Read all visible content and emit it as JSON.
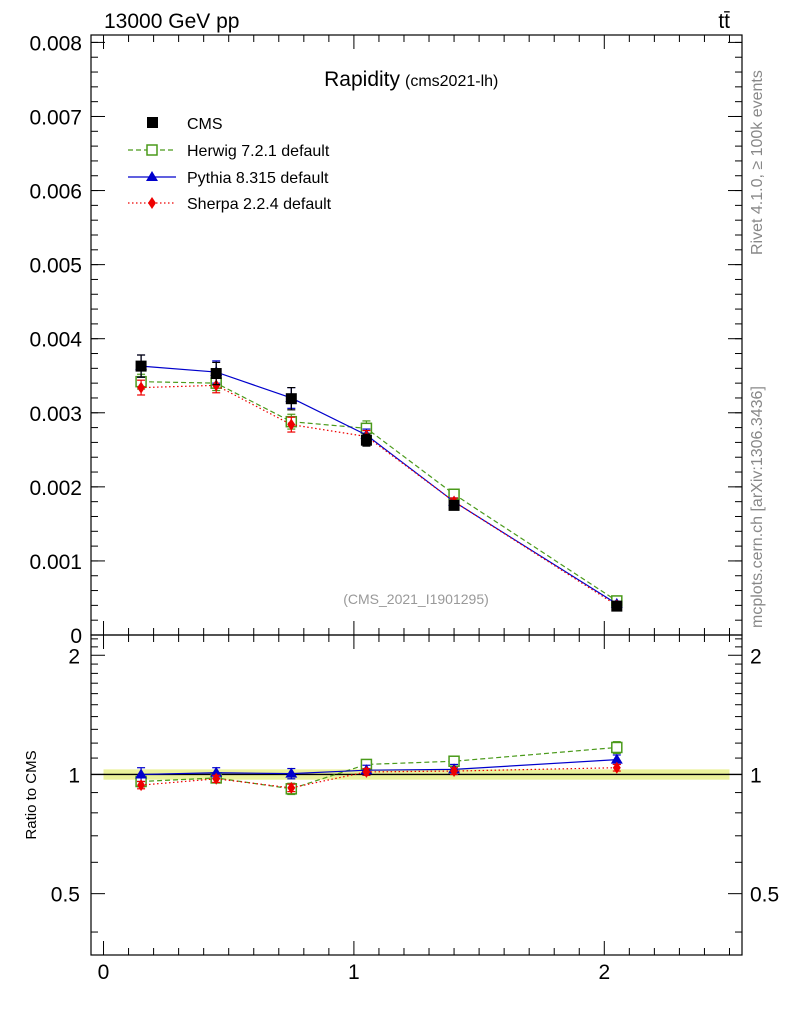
{
  "header": {
    "energy_label": "13000 GeV pp",
    "process_label": "tt̄",
    "side_label_top": "Rivet 4.1.0, ≥ 100k events",
    "side_label_bottom": "mcplots.cern.ch [arXiv:1306.3436]"
  },
  "chart_data": [
    {
      "type": "line",
      "title": "Rapidity",
      "subtitle": "(cms2021-lh)",
      "watermark": "(CMS_2021_I1901295)",
      "xlabel": "",
      "ylabel": "",
      "xlim": [
        -0.05,
        2.55
      ],
      "ylim": [
        0,
        0.0081
      ],
      "yticks": [
        0,
        0.001,
        0.002,
        0.003,
        0.004,
        0.005,
        0.006,
        0.007,
        0.008
      ],
      "ytick_labels": [
        "0",
        "0.001",
        "0.002",
        "0.003",
        "0.004",
        "0.005",
        "0.006",
        "0.007",
        "0.008"
      ],
      "legend_position": "top-left",
      "x": [
        0.15,
        0.45,
        0.75,
        1.05,
        1.4,
        2.05
      ],
      "series": [
        {
          "name": "CMS",
          "color": "#000000",
          "marker": "square-filled",
          "line": "none",
          "values": [
            0.00363,
            0.00353,
            0.00319,
            0.00263,
            0.00175,
            0.00039
          ],
          "errors": [
            0.00015,
            0.00015,
            0.00015,
            8e-05,
            6e-05,
            4e-05
          ]
        },
        {
          "name": "Herwig 7.2.1 default",
          "color": "#4a9a1a",
          "marker": "square-open",
          "line": "dashed",
          "values": [
            0.00342,
            0.0034,
            0.00288,
            0.00279,
            0.0019,
            0.00046
          ],
          "errors": [
            0.0001,
            0.0001,
            0.0001,
            0.0001,
            6e-05,
            3e-05
          ]
        },
        {
          "name": "Pythia 8.315 default",
          "color": "#0000cc",
          "marker": "triangle",
          "line": "solid",
          "values": [
            0.00363,
            0.00355,
            0.0032,
            0.0027,
            0.0018,
            0.00042
          ],
          "errors": [
            0.00015,
            0.00015,
            0.00014,
            8e-05,
            5e-05,
            3e-05
          ]
        },
        {
          "name": "Sherpa 2.2.4 default",
          "color": "#ee0000",
          "marker": "diamond",
          "line": "dotted",
          "values": [
            0.00334,
            0.00337,
            0.00284,
            0.00268,
            0.0018,
            0.0004
          ],
          "errors": [
            0.0001,
            0.0001,
            0.0001,
            8e-05,
            5e-05,
            3e-05
          ]
        }
      ]
    },
    {
      "type": "line",
      "title": "",
      "xlabel": "",
      "ylabel": "Ratio to CMS",
      "xlim": [
        -0.05,
        2.55
      ],
      "ylim": [
        0.35,
        2.25
      ],
      "yticks": [
        0.5,
        1,
        2
      ],
      "ytick_labels": [
        "0.5",
        "1",
        "2"
      ],
      "xticks": [
        0,
        1,
        2
      ],
      "xtick_labels": [
        "0",
        "1",
        "2"
      ],
      "reference_band": "CMS uncertainty (yellow-green band around 1)",
      "x": [
        0.15,
        0.45,
        0.75,
        1.05,
        1.4,
        2.05
      ],
      "series": [
        {
          "name": "Herwig 7.2.1 default",
          "color": "#4a9a1a",
          "marker": "square-open",
          "line": "dashed",
          "values": [
            0.96,
            0.98,
            0.92,
            1.06,
            1.08,
            1.17
          ],
          "errors": [
            0.03,
            0.02,
            0.03,
            0.03,
            0.03,
            0.04
          ]
        },
        {
          "name": "Pythia 8.315 default",
          "color": "#0000cc",
          "marker": "triangle",
          "line": "solid",
          "values": [
            1.0,
            1.01,
            1.005,
            1.025,
            1.03,
            1.09
          ],
          "errors": [
            0.04,
            0.03,
            0.03,
            0.03,
            0.03,
            0.03
          ]
        },
        {
          "name": "Sherpa 2.2.4 default",
          "color": "#ee0000",
          "marker": "diamond",
          "line": "dotted",
          "values": [
            0.94,
            0.975,
            0.925,
            1.015,
            1.02,
            1.04
          ],
          "errors": [
            0.02,
            0.02,
            0.02,
            0.02,
            0.02,
            0.02
          ]
        }
      ]
    }
  ]
}
